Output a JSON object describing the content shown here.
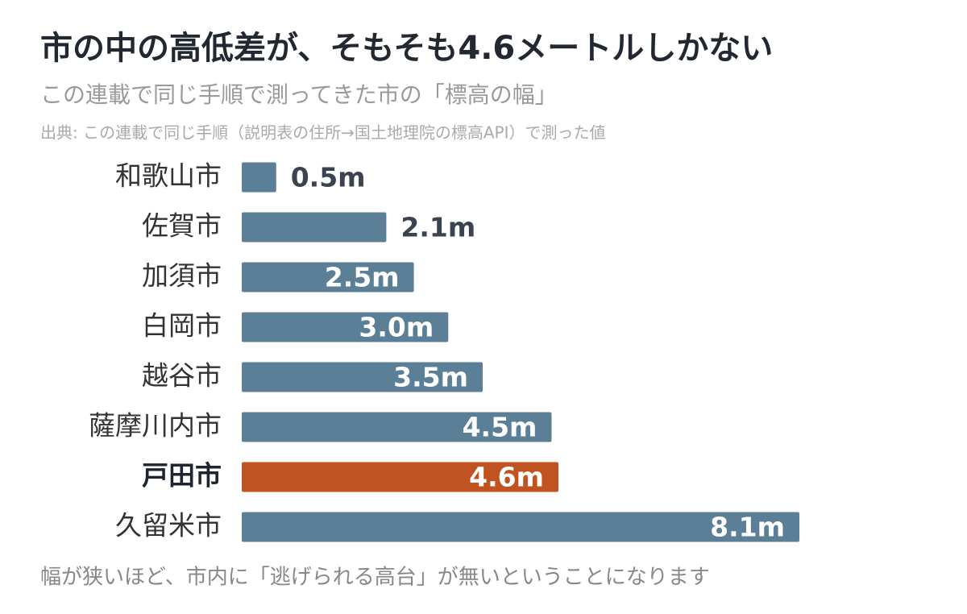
{
  "chart_data": {
    "type": "barh",
    "title": "市の中の高低差が、そもそも4.6メートルしかない",
    "subtitle": "この連載で同じ手順で測ってきた市の「標高の幅」",
    "source": "出典: この連載で同じ手順（説明表の住所→国土地理院の標高API）で測った値",
    "note": "幅が狭いほど、市内に「逃げられる高台」が無いということになります",
    "categories": [
      "和歌山市",
      "佐賀市",
      "加須市",
      "白岡市",
      "越谷市",
      "薩摩川内市",
      "戸田市",
      "久留米市"
    ],
    "values": [
      0.5,
      2.1,
      2.5,
      3.0,
      3.5,
      4.5,
      4.6,
      8.1
    ],
    "value_labels": [
      "0.5m",
      "2.1m",
      "2.5m",
      "3.0m",
      "3.5m",
      "4.5m",
      "4.6m",
      "8.1m"
    ],
    "color": "#5b7f96",
    "colors": [
      "#5b7f96",
      "#5b7f96",
      "#5b7f96",
      "#5b7f96",
      "#5b7f96",
      "#5b7f96",
      "#c0531f",
      "#5b7f96"
    ]
  }
}
